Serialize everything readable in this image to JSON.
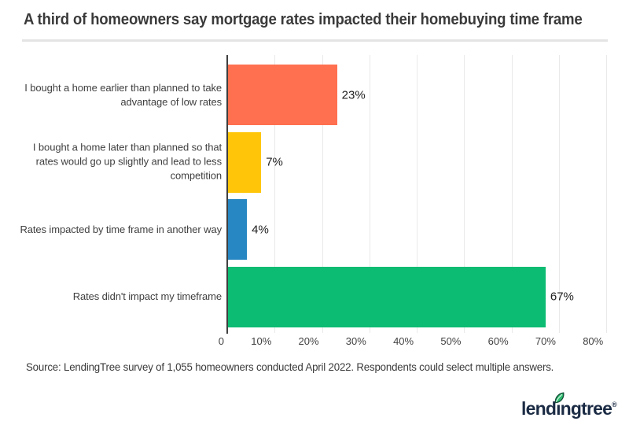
{
  "header": {
    "title": "A third of homeowners say mortgage rates impacted their homebuying time frame"
  },
  "chart_data": {
    "type": "bar",
    "orientation": "horizontal",
    "title": "A third of homeowners say mortgage rates impacted their homebuying time frame",
    "categories": [
      "I bought a home earlier than planned to take advantage of low rates",
      "I bought a home later than planned so that rates would go up slightly and lead to less competition",
      "Rates impacted by time frame in another way",
      "Rates didn't impact my timeframe"
    ],
    "values": [
      23,
      7,
      4,
      67
    ],
    "value_labels": [
      "23%",
      "7%",
      "4%",
      "67%"
    ],
    "bar_colors": [
      "#ff7050",
      "#ffc609",
      "#2787c2",
      "#0dbc73"
    ],
    "x_ticks": [
      "0",
      "10%",
      "20%",
      "30%",
      "40%",
      "50%",
      "60%",
      "70%",
      "80%"
    ],
    "xlim": [
      0,
      80
    ],
    "xlabel": "",
    "ylabel": "",
    "grid": "vertical-light",
    "legend": "none",
    "axis_color": "#3f3f3f",
    "gridline_color": "#e9e9e9"
  },
  "footer": {
    "source": "Source: LendingTree survey of 1,055 homeowners conducted April 2022. Respondents could select multiple answers.",
    "logo": {
      "text": "lendingtree",
      "registered_mark": "®",
      "navy": "#1b2b44",
      "leaf_green": "#2dbd6e"
    }
  }
}
